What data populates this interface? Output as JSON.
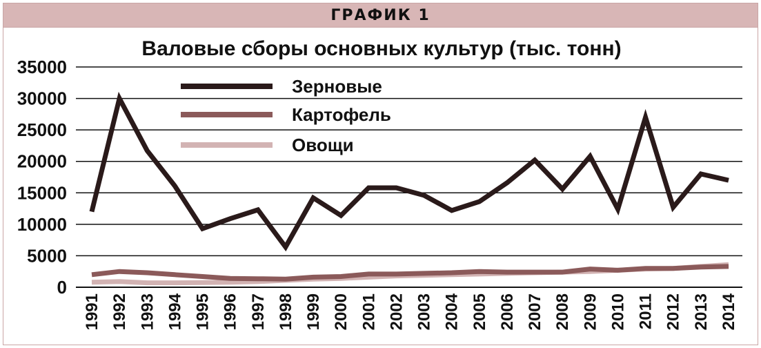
{
  "header": {
    "label": "ГРАФИК 1"
  },
  "chart_data": {
    "type": "line",
    "title": "Валовые сборы основных культур  (тыс. тонн)",
    "x": [
      "1991",
      "1992",
      "1993",
      "1994",
      "1995",
      "1996",
      "1997",
      "1998",
      "1999",
      "2000",
      "2001",
      "2002",
      "2003",
      "2004",
      "2005",
      "2006",
      "2007",
      "2008",
      "2009",
      "2010",
      "2011",
      "2012",
      "2013",
      "2014"
    ],
    "ylim": [
      0,
      35000
    ],
    "yticks": [
      0,
      5000,
      10000,
      15000,
      20000,
      25000,
      30000,
      35000
    ],
    "grid": true,
    "legend_position": "top-left",
    "series": [
      {
        "name": "Зерновые",
        "color": "#2a1a1a",
        "values": [
          12000,
          30000,
          21700,
          16100,
          9300,
          10900,
          12300,
          6400,
          14200,
          11400,
          15800,
          15800,
          14600,
          12200,
          13600,
          16600,
          20200,
          15600,
          20800,
          12400,
          27000,
          12700,
          18000,
          17000
        ]
      },
      {
        "name": "Картофель",
        "color": "#8b5a5a",
        "values": [
          2000,
          2500,
          2300,
          2000,
          1700,
          1400,
          1350,
          1300,
          1600,
          1700,
          2100,
          2100,
          2200,
          2300,
          2500,
          2400,
          2400,
          2400,
          2900,
          2700,
          3000,
          3000,
          3200,
          3300
        ]
      },
      {
        "name": "Овощи",
        "color": "#d2b3b3",
        "values": [
          800,
          900,
          700,
          700,
          750,
          800,
          900,
          1100,
          1300,
          1400,
          1600,
          1800,
          1900,
          2000,
          2100,
          2200,
          2300,
          2400,
          2500,
          2700,
          2900,
          3000,
          3300,
          3600
        ]
      }
    ]
  }
}
